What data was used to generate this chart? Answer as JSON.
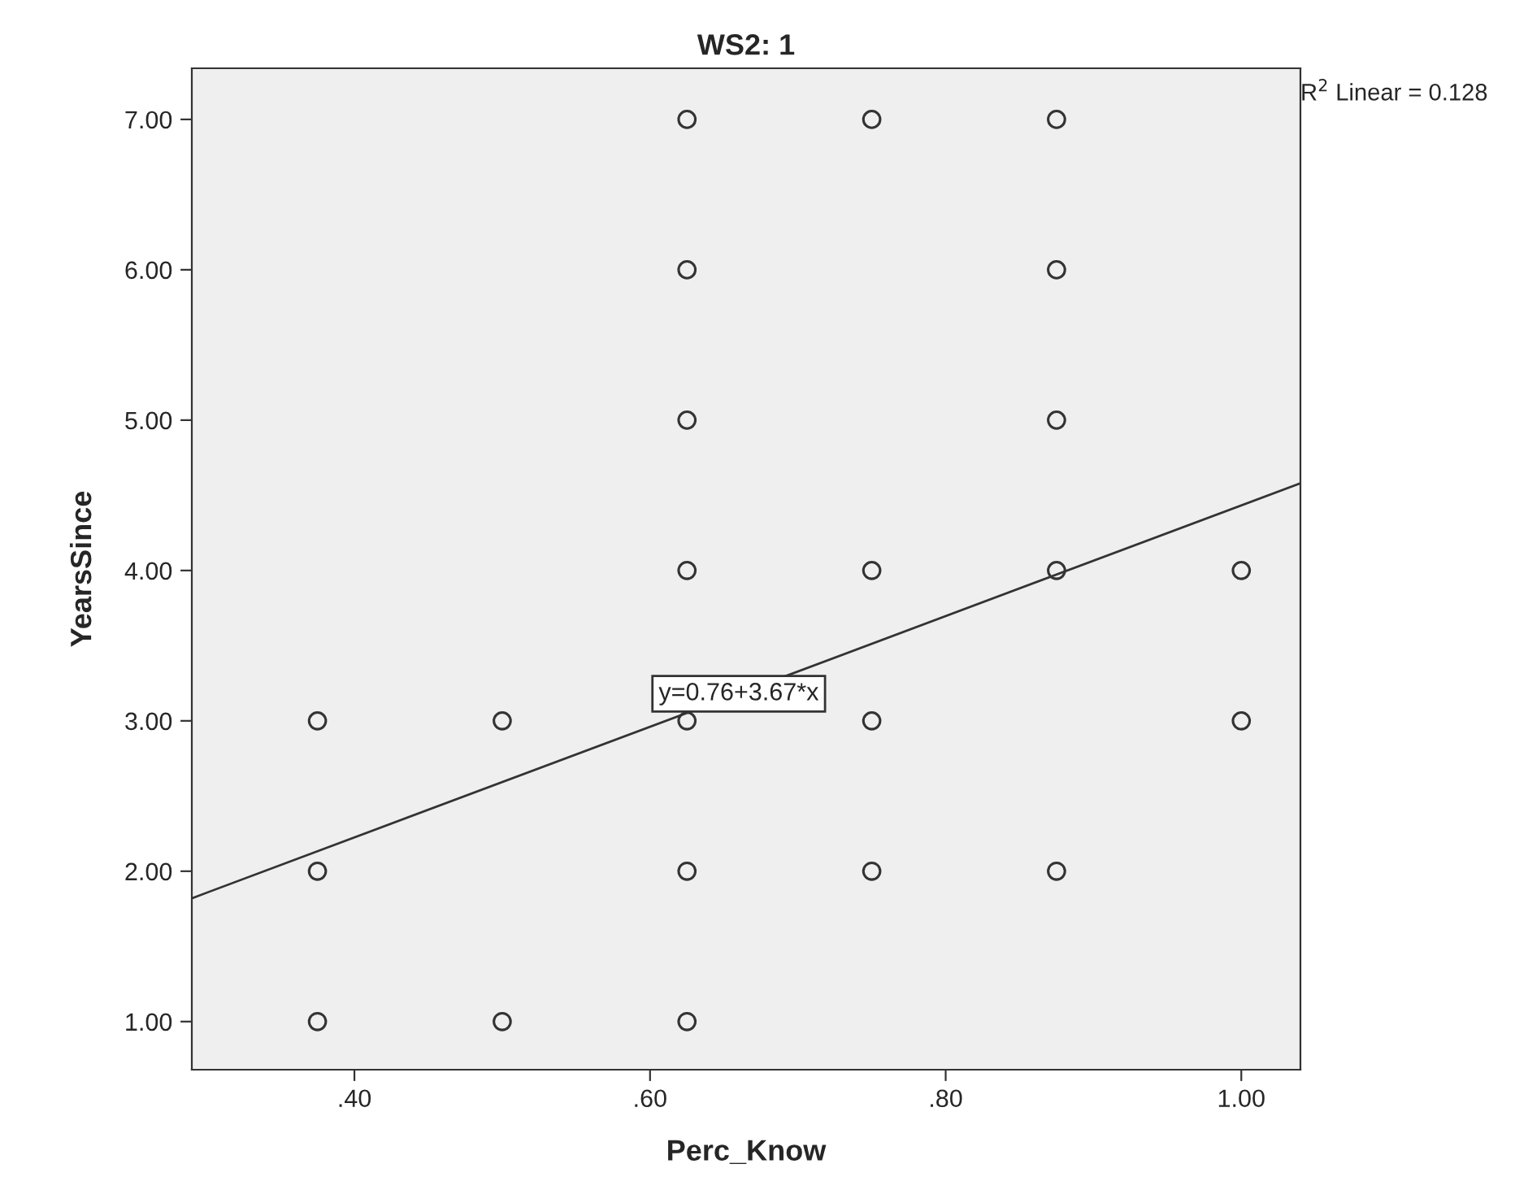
{
  "chart_data": {
    "type": "scatter",
    "title": "WS2: 1",
    "xlabel": "Perc_Know",
    "ylabel": "YearsSince",
    "series": [
      {
        "color": "#333333",
        "marker": "circle",
        "x": [
          0.375,
          0.375,
          0.375,
          0.5,
          0.5,
          0.625,
          0.625,
          0.625,
          0.625,
          0.625,
          0.625,
          0.625,
          0.75,
          0.75,
          0.75,
          0.75,
          0.875,
          0.875,
          0.875,
          0.875,
          0.875,
          1.0,
          1.0
        ],
        "values": [
          3,
          2,
          1,
          3,
          1,
          7,
          6,
          5,
          4,
          3,
          2,
          1,
          7,
          4,
          3,
          2,
          7,
          6,
          5,
          4,
          2,
          4,
          3
        ]
      },
      {
        "type": "line",
        "color": "#333333",
        "x": [
          0.29,
          1.04
        ],
        "values": [
          1.82,
          4.58
        ]
      }
    ],
    "annotations": [
      {
        "text": "y=0.76+3.67*x",
        "x": 0.66,
        "y": 3.18
      },
      "R$^{2}$ Linear = 0.128"
    ],
    "xlim": [
      0.29,
      1.04
    ],
    "ylim": [
      0.68,
      7.34
    ],
    "xticks": [
      {
        "value": 0.4,
        "label": ".40"
      },
      {
        "value": 0.6,
        "label": ".60"
      },
      {
        "value": 0.8,
        "label": ".80"
      },
      {
        "value": 1.0,
        "label": "1.00"
      }
    ],
    "yticks": [
      {
        "value": 1,
        "label": "1.00"
      },
      {
        "value": 2,
        "label": "2.00"
      },
      {
        "value": 3,
        "label": "3.00"
      },
      {
        "value": 4,
        "label": "4.00"
      },
      {
        "value": 5,
        "label": "5.00"
      },
      {
        "value": 6,
        "label": "6.00"
      },
      {
        "value": 7,
        "label": "7.00"
      }
    ],
    "grid": false,
    "legend": false
  }
}
